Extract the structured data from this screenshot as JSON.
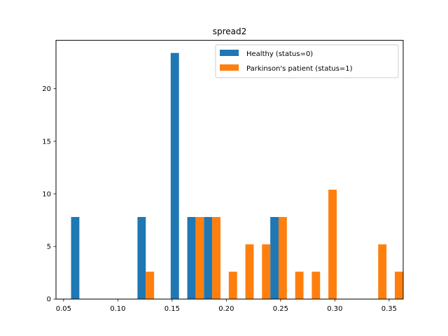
{
  "chart_data": {
    "type": "bar",
    "title": "spread2",
    "xlabel": "",
    "ylabel": "",
    "xlim": [
      0.043,
      0.363
    ],
    "ylim": [
      0,
      24.6
    ],
    "bin_width": 0.0153,
    "x_ticks": [
      0.05,
      0.1,
      0.15,
      0.2,
      0.25,
      0.3,
      0.35
    ],
    "x_tick_labels": [
      "0.05",
      "0.10",
      "0.15",
      "0.20",
      "0.25",
      "0.30",
      "0.35"
    ],
    "y_ticks": [
      0,
      5,
      10,
      15,
      20
    ],
    "y_tick_labels": [
      "0",
      "5",
      "10",
      "15",
      "20"
    ],
    "bin_starts": [
      0.0569,
      0.0722,
      0.0875,
      0.1028,
      0.1181,
      0.1334,
      0.1487,
      0.164,
      0.1793,
      0.1946,
      0.2099,
      0.2252,
      0.2405,
      0.2558,
      0.2711,
      0.2864,
      0.3017,
      0.317,
      0.3323,
      0.3476
    ],
    "series": [
      {
        "name": "Healthy (status=0)",
        "color": "#1f77b4",
        "values": [
          7.8,
          0,
          0,
          0,
          7.8,
          0,
          23.4,
          7.8,
          7.8,
          0,
          0,
          0,
          7.8,
          0,
          0,
          0,
          0,
          0,
          0,
          0
        ]
      },
      {
        "name": "Parkinson's patient (status=1)",
        "color": "#ff7f0e",
        "values": [
          0,
          0,
          0,
          0,
          2.6,
          0,
          0,
          7.8,
          7.8,
          2.6,
          5.2,
          5.2,
          7.8,
          2.6,
          2.6,
          10.4,
          0,
          0,
          5.2,
          2.6
        ]
      }
    ],
    "legend_position": "upper-right",
    "grid": false
  }
}
